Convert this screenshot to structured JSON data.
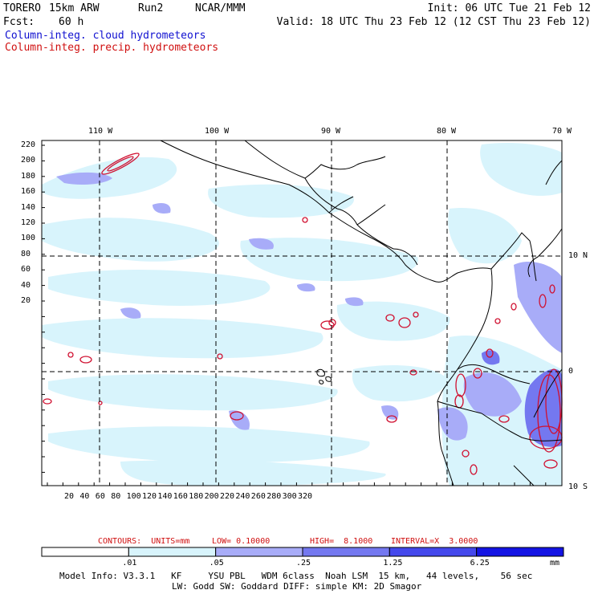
{
  "header": {
    "model": "TORERO",
    "resolution": "15km ARW",
    "run": "Run2",
    "org": "NCAR/MMM",
    "init": "Init: 06 UTC Tue 21 Feb 12",
    "fcst_label": "Fcst:",
    "fcst_value": "60 h",
    "valid": "Valid: 18 UTC Thu 23 Feb 12 (12 CST Thu 23 Feb 12)",
    "field_cloud": "Column-integ. cloud hydrometeors",
    "field_precip": "Column-integ. precip. hydrometeors"
  },
  "map": {
    "lon_labels": [
      "110 W",
      "100 W",
      "90 W",
      "80 W",
      "70 W"
    ],
    "lat_labels": [
      "10 N",
      "0",
      "10 S"
    ],
    "y_ticks": [
      "220",
      "200",
      "180",
      "160",
      "140",
      "120",
      "100",
      "80",
      "60",
      "40",
      "20"
    ],
    "x_ticks": [
      "20",
      "40",
      "60",
      "80",
      "100",
      "120",
      "140",
      "160",
      "180",
      "200",
      "220",
      "240",
      "260",
      "280",
      "300",
      "320"
    ]
  },
  "contour_info": {
    "units_label": "CONTOURS:  UNITS=mm",
    "low": "LOW= 0.10000",
    "high": "HIGH=  8.1000",
    "interval": "INTERVAL=X  3.0000"
  },
  "colorbar": {
    "ticks": [
      ".01",
      ".05",
      ".25",
      "1.25",
      "6.25"
    ],
    "unit": "mm",
    "colors": [
      "#ffffff",
      "#d8f4fc",
      "#a8acf8",
      "#7478f0",
      "#4448ec",
      "#1414e4"
    ]
  },
  "model_info": {
    "line1": "Model Info: V3.3.1   KF     YSU PBL   WDM 6class  Noah LSM  15 km,   44 levels,    56 sec",
    "line2": "LW: Godd SW: Goddard DIFF: simple KM: 2D Smagor"
  }
}
